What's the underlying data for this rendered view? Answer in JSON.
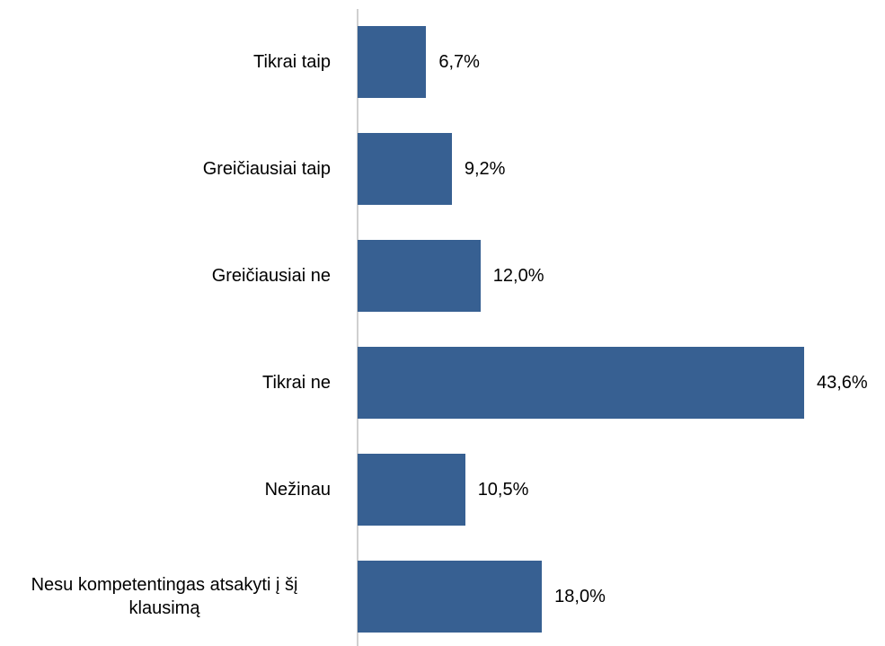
{
  "chart_data": {
    "type": "hbar",
    "categories": [
      "Tikrai taip",
      "Greičiausiai taip",
      "Greičiausiai ne",
      "Tikrai ne",
      "Nežinau",
      "Nesu kompetentingas atsakyti į šį klausimą"
    ],
    "values": [
      6.7,
      9.2,
      12.0,
      43.6,
      10.5,
      18.0
    ],
    "value_labels": [
      "6,7%",
      "9,2%",
      "12,0%",
      "43,6%",
      "10,5%",
      "18,0%"
    ],
    "color": "#376092"
  }
}
